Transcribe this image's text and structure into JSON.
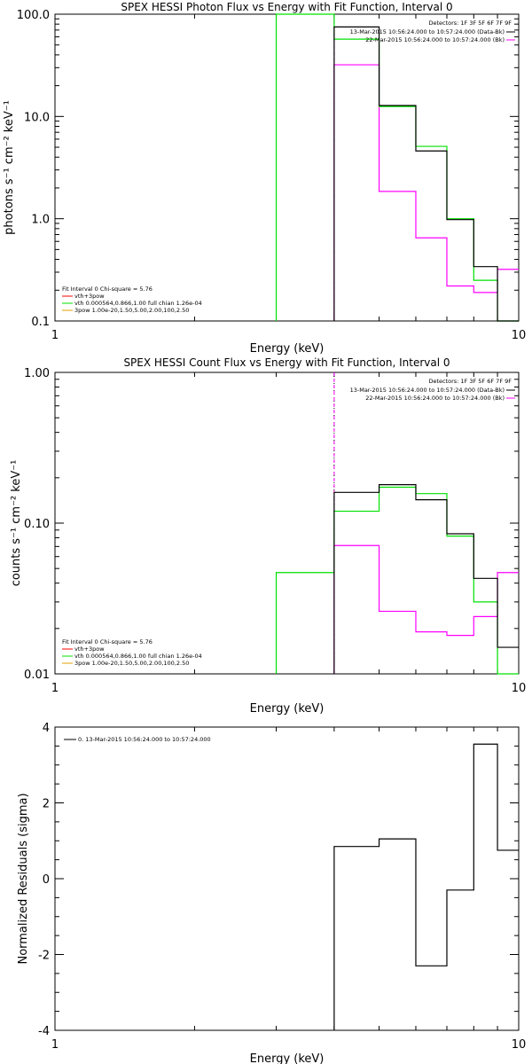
{
  "colors": {
    "data": "#000000",
    "bk": "#ff00ff",
    "model": "#00e000",
    "comp": "#e0a000",
    "fitline": "#ff0000"
  },
  "chart_data": [
    {
      "type": "line",
      "title": "SPEX HESSI Photon Flux vs Energy with Fit Function, Interval 0",
      "xlabel": "Energy (keV)",
      "ylabel": "photons s⁻¹ cm⁻² keV⁻¹",
      "xscale": "log",
      "yscale": "log",
      "xlim": [
        1,
        10
      ],
      "ylim": [
        0.1,
        100
      ],
      "xticks": [
        {
          "v": 1,
          "label": "1"
        },
        {
          "v": 10,
          "label": "10"
        }
      ],
      "yticks": [
        {
          "v": 0.1,
          "label": "0.1"
        },
        {
          "v": 1,
          "label": "1.0"
        },
        {
          "v": 10,
          "label": "10.0"
        },
        {
          "v": 100,
          "label": "100.0"
        }
      ],
      "edges": [
        3,
        4,
        5,
        6,
        7,
        8,
        9,
        10
      ],
      "series": [
        {
          "role": "data",
          "values": [
            null,
            75,
            12.8,
            4.6,
            0.98,
            0.34,
            0.1
          ]
        },
        {
          "role": "bk",
          "values": [
            null,
            32,
            1.85,
            0.65,
            0.22,
            0.19,
            0.32
          ]
        },
        {
          "role": "model",
          "values": [
            100,
            57,
            12.5,
            5.1,
            1.0,
            0.25,
            0.1
          ]
        }
      ],
      "vlines": [
        {
          "x": 4,
          "style": "dash",
          "color": "bk"
        }
      ],
      "legend_top": {
        "header": "Detectors: 1F 3F 5F 6F 7F 9F",
        "rows": [
          {
            "text": "13-Mar-2015 10:56:24.000 to 10:57:24.000 (Data-Bk)",
            "color": "data"
          },
          {
            "text": "22-Mar-2015 10:56:24.000 to 10:57:24.000 (Bk)",
            "color": "bk"
          }
        ]
      },
      "legend_bottom": {
        "header": "Fit Interval 0   Chi-square = 5.76",
        "rows": [
          {
            "text": "vth+3pow",
            "color": "fitline"
          },
          {
            "text": "vth 0.000564,0.866,1.00  full chian 1.26e-04",
            "color": "model"
          },
          {
            "text": "3pow 1.00e-20,1.50,5.00,2.00,100,2.50",
            "color": "comp"
          }
        ]
      }
    },
    {
      "type": "line",
      "title": "SPEX HESSI Count Flux vs Energy with Fit Function, Interval 0",
      "xlabel": "Energy (keV)",
      "ylabel": "counts s⁻¹ cm⁻² keV⁻¹",
      "xscale": "log",
      "yscale": "log",
      "xlim": [
        1,
        10
      ],
      "ylim": [
        0.01,
        1
      ],
      "xticks": [
        {
          "v": 1,
          "label": "1"
        },
        {
          "v": 10,
          "label": "10"
        }
      ],
      "yticks": [
        {
          "v": 0.01,
          "label": "0.01"
        },
        {
          "v": 0.1,
          "label": "0.10"
        },
        {
          "v": 1,
          "label": "1.00"
        }
      ],
      "edges": [
        3,
        4,
        5,
        6,
        7,
        8,
        9,
        10
      ],
      "series": [
        {
          "role": "data",
          "values": [
            null,
            0.16,
            0.18,
            0.143,
            0.085,
            0.043,
            0.015
          ]
        },
        {
          "role": "bk",
          "values": [
            null,
            0.071,
            0.026,
            0.019,
            0.018,
            0.024,
            0.047
          ]
        },
        {
          "role": "model",
          "values": [
            0.047,
            0.12,
            0.173,
            0.157,
            0.082,
            0.03,
            0.01
          ]
        }
      ],
      "vlines": [
        {
          "x": 4,
          "style": "dot",
          "color": "data"
        },
        {
          "x": 4,
          "style": "dash",
          "color": "bk"
        }
      ],
      "legend_top": {
        "header": "Detectors: 1F 3F 5F 6F 7F 9F",
        "rows": [
          {
            "text": "13-Mar-2015 10:56:24.000 to 10:57:24.000 (Data-Bk)",
            "color": "data"
          },
          {
            "text": "22-Mar-2015 10:56:24.000 to 10:57:24.000 (Bk)",
            "color": "bk"
          }
        ]
      },
      "legend_bottom": {
        "header": "Fit Interval 0   Chi-square = 5.76",
        "rows": [
          {
            "text": "vth+3pow",
            "color": "fitline"
          },
          {
            "text": "vth 0.000564,0.866,1.00  full chian 1.26e-04",
            "color": "model"
          },
          {
            "text": "3pow 1.00e-20,1.50,5.00,2.00,100,2.50",
            "color": "comp"
          }
        ]
      }
    },
    {
      "type": "line",
      "title": "",
      "xlabel": "Energy (keV)",
      "ylabel": "Normalized Residuals (sigma)",
      "xscale": "log",
      "yscale": "linear",
      "xlim": [
        1,
        10
      ],
      "ylim": [
        -4,
        4
      ],
      "xticks": [
        {
          "v": 1,
          "label": "1"
        },
        {
          "v": 10,
          "label": "10"
        }
      ],
      "yticks": [
        {
          "v": -4,
          "label": "-4"
        },
        {
          "v": -2,
          "label": "-2"
        },
        {
          "v": 0,
          "label": "0"
        },
        {
          "v": 2,
          "label": "2"
        },
        {
          "v": 4,
          "label": "4"
        }
      ],
      "edges": [
        4,
        5,
        6,
        7,
        8,
        9,
        10
      ],
      "series": [
        {
          "role": "data",
          "values": [
            0.85,
            1.05,
            -2.3,
            -0.3,
            3.55,
            0.75
          ]
        }
      ],
      "vlines": [],
      "legend_top": null,
      "legend_bottom": null,
      "legend_left": {
        "rows": [
          {
            "text": "0. 13-Mar-2015 10:56:24.000 to 10:57:24.000",
            "color": "data"
          }
        ]
      }
    }
  ]
}
